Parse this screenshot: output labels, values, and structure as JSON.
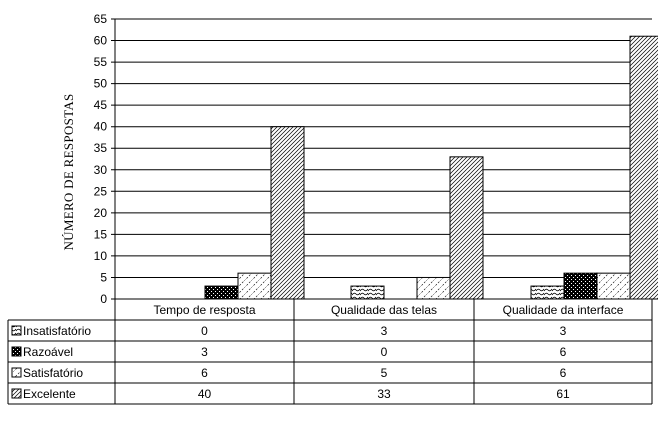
{
  "chart_data": {
    "type": "bar",
    "title": "",
    "xlabel": "",
    "ylabel": "NÚMERO DE RESPOSTAS",
    "ylim": [
      0,
      65
    ],
    "yticks": [
      0,
      5,
      10,
      15,
      20,
      25,
      30,
      35,
      40,
      45,
      50,
      55,
      60,
      65
    ],
    "grid": true,
    "legend": "data-table-left",
    "categories": [
      "Tempo de resposta",
      "Qualidade das telas",
      "Qualidade da interface"
    ],
    "series": [
      {
        "name": "Insatisfatório",
        "values": [
          0,
          3,
          3
        ],
        "pattern": "wave"
      },
      {
        "name": "Razoável",
        "values": [
          3,
          0,
          6
        ],
        "pattern": "dense-dots"
      },
      {
        "name": "Satisfatório",
        "values": [
          6,
          5,
          6
        ],
        "pattern": "diagonal-light"
      },
      {
        "name": "Excelente",
        "values": [
          40,
          33,
          61
        ],
        "pattern": "diagonal-dense"
      }
    ]
  }
}
